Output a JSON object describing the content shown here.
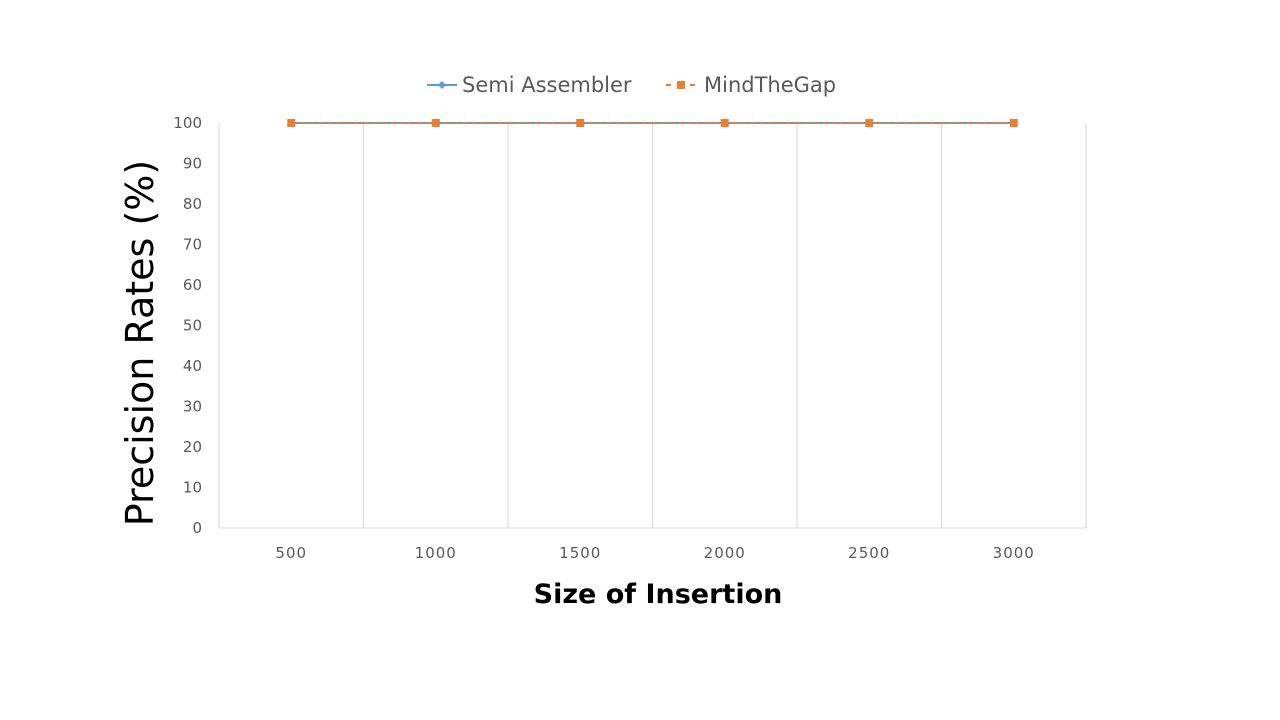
{
  "chart_data": {
    "type": "line",
    "title": "",
    "xlabel": "Size of Insertion",
    "ylabel": "Precision Rates (%)",
    "categories": [
      "500",
      "1000",
      "1500",
      "2000",
      "2500",
      "3000"
    ],
    "ylim": [
      0,
      100
    ],
    "yticks": [
      "0",
      "10",
      "20",
      "30",
      "40",
      "50",
      "60",
      "70",
      "80",
      "90",
      "100"
    ],
    "grid": "vertical",
    "legend_position": "top",
    "series": [
      {
        "name": "Semi Assembler",
        "values": [
          100,
          100,
          100,
          100,
          100,
          100
        ],
        "color": "#5b9bd5",
        "marker": "diamond",
        "line": "solid"
      },
      {
        "name": "MindTheGap",
        "values": [
          100,
          100,
          100,
          100,
          100,
          100
        ],
        "color": "#ed7d31",
        "marker": "square",
        "line": "dashed"
      }
    ]
  }
}
